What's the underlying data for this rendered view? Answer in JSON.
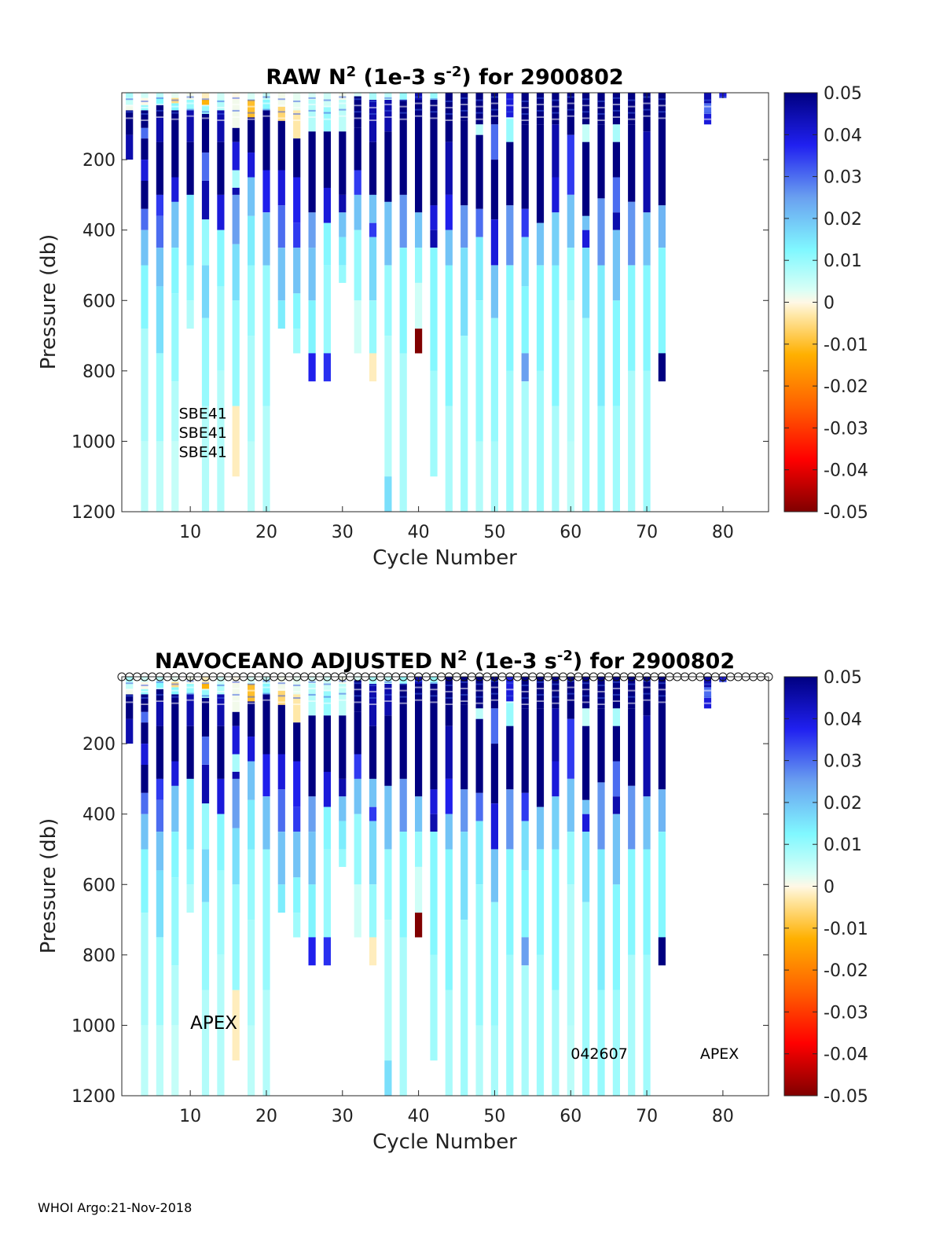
{
  "footer": "WHOI Argo:21-Nov-2018",
  "chart_data": [
    {
      "type": "heatmap",
      "title_prefix": "RAW N",
      "title_sup": "2",
      "title_mid": " (1e-3 s",
      "title_sup2": "-2",
      "title_suffix": ") for 2900802",
      "xlabel": "Cycle Number",
      "ylabel": "Pressure (db)",
      "xlim": [
        1,
        86
      ],
      "ylim": [
        10,
        1200
      ],
      "y_reversed": true,
      "xticks": [
        10,
        20,
        30,
        40,
        50,
        60,
        70,
        80
      ],
      "yticks": [
        200,
        400,
        600,
        800,
        1000,
        1200
      ],
      "colorbar": {
        "min": -0.05,
        "max": 0.05,
        "ticks": [
          "0.05",
          "0.04",
          "0.03",
          "0.02",
          "0.01",
          "0",
          "-0.01",
          "-0.02",
          "-0.03",
          "-0.04",
          "-0.05"
        ]
      },
      "flag_row": false,
      "annotations": [
        {
          "text": "SBE41",
          "cycle": 8.5,
          "pressure": 935
        },
        {
          "text": "SBE41",
          "cycle": 8.5,
          "pressure": 990
        },
        {
          "text": "SBE41",
          "cycle": 8.5,
          "pressure": 1045
        }
      ]
    },
    {
      "type": "heatmap",
      "title_prefix": "NAVOCEANO  ADJUSTED N",
      "title_sup": "2",
      "title_mid": " (1e-3 s",
      "title_sup2": "-2",
      "title_suffix": ") for 2900802",
      "xlabel": "Cycle Number",
      "ylabel": "Pressure (db)",
      "xlim": [
        1,
        86
      ],
      "ylim": [
        10,
        1200
      ],
      "y_reversed": true,
      "xticks": [
        10,
        20,
        30,
        40,
        50,
        60,
        70,
        80
      ],
      "yticks": [
        200,
        400,
        600,
        800,
        1000,
        1200
      ],
      "colorbar": {
        "min": -0.05,
        "max": 0.05,
        "ticks": [
          "0.05",
          "0.04",
          "0.03",
          "0.02",
          "0.01",
          "0",
          "-0.01",
          "-0.02",
          "-0.03",
          "-0.04",
          "-0.05"
        ]
      },
      "flag_row": true,
      "annotations": [
        {
          "text": "APEX",
          "cycle": 10,
          "pressure": 1010,
          "large": true
        },
        {
          "text": "042607",
          "cycle": 60,
          "pressure": 1095
        },
        {
          "text": "APEX",
          "cycle": 77,
          "pressure": 1095
        }
      ]
    }
  ],
  "profiles": [
    {
      "cycle": 2,
      "max_p": 200,
      "segs": [
        [
          10,
          0.008
        ],
        [
          25,
          0.005
        ],
        [
          45,
          0.001
        ],
        [
          60,
          0.05
        ],
        [
          130,
          0.045
        ]
      ]
    },
    {
      "cycle": 4,
      "max_p": 1200,
      "segs": [
        [
          10,
          0.004
        ],
        [
          25,
          0.0
        ],
        [
          45,
          0.01
        ],
        [
          60,
          0.05
        ],
        [
          110,
          0.03
        ],
        [
          140,
          0.05
        ],
        [
          200,
          0.04
        ],
        [
          260,
          0.05
        ],
        [
          340,
          0.03
        ],
        [
          400,
          0.02
        ],
        [
          500,
          0.012
        ],
        [
          680,
          0.008
        ],
        [
          1000,
          0.006
        ]
      ]
    },
    {
      "cycle": 6,
      "max_p": 1200,
      "segs": [
        [
          10,
          0.006
        ],
        [
          25,
          0.012
        ],
        [
          45,
          0.05
        ],
        [
          80,
          0.045
        ],
        [
          150,
          0.05
        ],
        [
          300,
          0.035
        ],
        [
          360,
          0.03
        ],
        [
          450,
          0.02
        ],
        [
          560,
          0.016
        ],
        [
          750,
          0.009
        ],
        [
          1000,
          0.006
        ]
      ]
    },
    {
      "cycle": 8,
      "max_p": 1200,
      "segs": [
        [
          10,
          0.002
        ],
        [
          25,
          -0.005
        ],
        [
          40,
          0.012
        ],
        [
          60,
          0.05
        ],
        [
          250,
          0.04
        ],
        [
          320,
          0.02
        ],
        [
          450,
          0.012
        ],
        [
          580,
          0.01
        ],
        [
          830,
          0.007
        ],
        [
          1000,
          0.005
        ]
      ]
    },
    {
      "cycle": 10,
      "max_p": 680,
      "segs": [
        [
          10,
          0.001
        ],
        [
          30,
          0.01
        ],
        [
          60,
          0.045
        ],
        [
          150,
          0.05
        ],
        [
          300,
          0.014
        ],
        [
          500,
          0.01
        ],
        [
          600,
          0.007
        ]
      ]
    },
    {
      "cycle": 12,
      "max_p": 1200,
      "segs": [
        [
          10,
          -0.002
        ],
        [
          30,
          -0.012
        ],
        [
          45,
          0.01
        ],
        [
          70,
          0.05
        ],
        [
          180,
          0.03
        ],
        [
          260,
          0.045
        ],
        [
          370,
          0.01
        ],
        [
          500,
          0.017
        ],
        [
          650,
          0.01
        ],
        [
          900,
          0.007
        ]
      ]
    },
    {
      "cycle": 14,
      "max_p": 1200,
      "segs": [
        [
          10,
          0.004
        ],
        [
          30,
          0.007
        ],
        [
          60,
          0.045
        ],
        [
          150,
          0.05
        ],
        [
          300,
          0.04
        ],
        [
          400,
          0.012
        ],
        [
          560,
          0.009
        ],
        [
          800,
          0.007
        ]
      ]
    },
    {
      "cycle": 16,
      "max_p": 1100,
      "segs": [
        [
          10,
          0.0
        ],
        [
          30,
          0.001
        ],
        [
          110,
          0.05
        ],
        [
          150,
          0.04
        ],
        [
          230,
          0.008
        ],
        [
          280,
          0.045
        ],
        [
          300,
          0.025
        ],
        [
          440,
          0.016
        ],
        [
          600,
          0.01
        ],
        [
          900,
          -0.002
        ]
      ]
    },
    {
      "cycle": 18,
      "max_p": 1200,
      "segs": [
        [
          10,
          0.003
        ],
        [
          30,
          -0.01
        ],
        [
          80,
          0.05
        ],
        [
          180,
          0.04
        ],
        [
          250,
          0.02
        ],
        [
          360,
          0.014
        ],
        [
          500,
          0.01
        ],
        [
          700,
          0.008
        ],
        [
          1000,
          0.006
        ]
      ]
    },
    {
      "cycle": 20,
      "max_p": 1200,
      "segs": [
        [
          10,
          0.005
        ],
        [
          30,
          0.012
        ],
        [
          60,
          0.05
        ],
        [
          230,
          0.038
        ],
        [
          350,
          0.02
        ],
        [
          500,
          0.01
        ],
        [
          900,
          0.007
        ]
      ]
    },
    {
      "cycle": 22,
      "max_p": 680,
      "segs": [
        [
          10,
          0.001
        ],
        [
          50,
          -0.006
        ],
        [
          90,
          0.05
        ],
        [
          230,
          0.04
        ],
        [
          330,
          0.03
        ],
        [
          450,
          0.02
        ],
        [
          600,
          0.014
        ]
      ]
    },
    {
      "cycle": 24,
      "max_p": 750,
      "segs": [
        [
          10,
          0.002
        ],
        [
          60,
          -0.003
        ],
        [
          140,
          0.05
        ],
        [
          250,
          0.038
        ],
        [
          380,
          0.035
        ],
        [
          450,
          0.02
        ],
        [
          580,
          0.012
        ],
        [
          680,
          0.009
        ]
      ]
    },
    {
      "cycle": 26,
      "max_p": 830,
      "segs": [
        [
          10,
          0.003
        ],
        [
          30,
          0.007
        ],
        [
          120,
          0.05
        ],
        [
          350,
          0.025
        ],
        [
          450,
          0.02
        ],
        [
          600,
          0.013
        ],
        [
          750,
          0.038
        ]
      ]
    },
    {
      "cycle": 28,
      "max_p": 830,
      "segs": [
        [
          10,
          0.004
        ],
        [
          50,
          0.01
        ],
        [
          120,
          0.05
        ],
        [
          280,
          0.04
        ],
        [
          380,
          0.012
        ],
        [
          500,
          0.01
        ],
        [
          750,
          0.036
        ]
      ]
    },
    {
      "cycle": 30,
      "max_p": 550,
      "segs": [
        [
          10,
          0.001
        ],
        [
          30,
          0.006
        ],
        [
          120,
          0.05
        ],
        [
          300,
          0.045
        ],
        [
          350,
          0.02
        ],
        [
          420,
          0.014
        ],
        [
          500,
          0.01
        ]
      ]
    },
    {
      "cycle": 32,
      "max_p": 750,
      "segs": [
        [
          10,
          0.003
        ],
        [
          20,
          0.05
        ],
        [
          110,
          0.05
        ],
        [
          230,
          0.035
        ],
        [
          300,
          0.02
        ],
        [
          400,
          0.01
        ],
        [
          600,
          0.004
        ]
      ]
    },
    {
      "cycle": 34,
      "max_p": 830,
      "segs": [
        [
          10,
          0.008
        ],
        [
          30,
          0.045
        ],
        [
          150,
          0.05
        ],
        [
          300,
          0.02
        ],
        [
          380,
          0.035
        ],
        [
          420,
          0.017
        ],
        [
          600,
          0.01
        ],
        [
          750,
          -0.002
        ]
      ]
    },
    {
      "cycle": 36,
      "max_p": 1200,
      "segs": [
        [
          10,
          0.006
        ],
        [
          30,
          0.045
        ],
        [
          120,
          0.05
        ],
        [
          320,
          0.02
        ],
        [
          500,
          0.01
        ],
        [
          700,
          0.007
        ],
        [
          1100,
          0.016
        ]
      ]
    },
    {
      "cycle": 38,
      "max_p": 1200,
      "segs": [
        [
          10,
          0.01
        ],
        [
          30,
          0.05
        ],
        [
          300,
          0.026
        ],
        [
          450,
          0.012
        ],
        [
          750,
          0.008
        ]
      ]
    },
    {
      "cycle": 40,
      "max_p": 750,
      "segs": [
        [
          10,
          0.045
        ],
        [
          30,
          0.05
        ],
        [
          350,
          0.02
        ],
        [
          450,
          0.01
        ],
        [
          550,
          0.004
        ],
        [
          680,
          -0.05
        ]
      ]
    },
    {
      "cycle": 42,
      "max_p": 1100,
      "segs": [
        [
          10,
          0.01
        ],
        [
          30,
          0.05
        ],
        [
          330,
          0.04
        ],
        [
          400,
          0.045
        ],
        [
          450,
          0.012
        ],
        [
          800,
          0.009
        ]
      ]
    },
    {
      "cycle": 44,
      "max_p": 1200,
      "segs": [
        [
          10,
          0.05
        ],
        [
          150,
          0.045
        ],
        [
          300,
          0.038
        ],
        [
          400,
          0.02
        ],
        [
          500,
          0.012
        ],
        [
          900,
          0.008
        ]
      ]
    },
    {
      "cycle": 46,
      "max_p": 1200,
      "segs": [
        [
          10,
          0.05
        ],
        [
          90,
          0.05
        ],
        [
          330,
          0.026
        ],
        [
          450,
          0.016
        ],
        [
          700,
          0.009
        ]
      ]
    },
    {
      "cycle": 48,
      "max_p": 1200,
      "segs": [
        [
          10,
          0.05
        ],
        [
          100,
          0.006
        ],
        [
          130,
          0.05
        ],
        [
          340,
          0.03
        ],
        [
          420,
          0.014
        ],
        [
          600,
          0.01
        ],
        [
          1000,
          0.007
        ]
      ]
    },
    {
      "cycle": 50,
      "max_p": 1200,
      "segs": [
        [
          10,
          0.05
        ],
        [
          100,
          0.03
        ],
        [
          200,
          0.05
        ],
        [
          370,
          0.04
        ],
        [
          500,
          0.02
        ],
        [
          650,
          0.01
        ],
        [
          1000,
          0.008
        ]
      ]
    },
    {
      "cycle": 52,
      "max_p": 1200,
      "segs": [
        [
          10,
          0.04
        ],
        [
          80,
          0.01
        ],
        [
          150,
          0.05
        ],
        [
          330,
          0.026
        ],
        [
          500,
          0.012
        ],
        [
          800,
          0.009
        ]
      ]
    },
    {
      "cycle": 54,
      "max_p": 1200,
      "segs": [
        [
          10,
          0.05
        ],
        [
          100,
          0.05
        ],
        [
          340,
          0.035
        ],
        [
          420,
          0.016
        ],
        [
          560,
          0.012
        ],
        [
          750,
          0.025
        ],
        [
          830,
          0.008
        ]
      ]
    },
    {
      "cycle": 56,
      "max_p": 1200,
      "segs": [
        [
          10,
          0.05
        ],
        [
          100,
          0.05
        ],
        [
          380,
          0.02
        ],
        [
          500,
          0.012
        ],
        [
          800,
          0.009
        ]
      ]
    },
    {
      "cycle": 58,
      "max_p": 1200,
      "segs": [
        [
          10,
          0.05
        ],
        [
          100,
          0.045
        ],
        [
          250,
          0.04
        ],
        [
          350,
          0.018
        ],
        [
          500,
          0.012
        ],
        [
          900,
          0.008
        ]
      ]
    },
    {
      "cycle": 60,
      "max_p": 1200,
      "segs": [
        [
          10,
          0.05
        ],
        [
          130,
          0.035
        ],
        [
          300,
          0.02
        ],
        [
          450,
          0.01
        ],
        [
          600,
          0.007
        ],
        [
          1000,
          0.006
        ]
      ]
    },
    {
      "cycle": 62,
      "max_p": 1200,
      "segs": [
        [
          10,
          0.05
        ],
        [
          100,
          0.005
        ],
        [
          150,
          0.05
        ],
        [
          360,
          0.02
        ],
        [
          400,
          0.04
        ],
        [
          450,
          0.016
        ],
        [
          650,
          0.009
        ]
      ]
    },
    {
      "cycle": 64,
      "max_p": 1200,
      "segs": [
        [
          10,
          0.05
        ],
        [
          100,
          0.05
        ],
        [
          310,
          0.026
        ],
        [
          500,
          0.014
        ],
        [
          900,
          0.01
        ]
      ]
    },
    {
      "cycle": 66,
      "max_p": 1200,
      "segs": [
        [
          10,
          0.05
        ],
        [
          100,
          0.008
        ],
        [
          150,
          0.05
        ],
        [
          250,
          0.03
        ],
        [
          350,
          0.045
        ],
        [
          400,
          0.02
        ],
        [
          600,
          0.012
        ],
        [
          900,
          0.009
        ]
      ]
    },
    {
      "cycle": 68,
      "max_p": 1200,
      "segs": [
        [
          10,
          0.05
        ],
        [
          100,
          0.05
        ],
        [
          320,
          0.026
        ],
        [
          500,
          0.012
        ],
        [
          800,
          0.008
        ]
      ]
    },
    {
      "cycle": 70,
      "max_p": 1200,
      "segs": [
        [
          10,
          0.05
        ],
        [
          120,
          0.045
        ],
        [
          350,
          0.02
        ],
        [
          500,
          0.012
        ],
        [
          800,
          0.009
        ]
      ]
    },
    {
      "cycle": 72,
      "max_p": 830,
      "segs": [
        [
          10,
          0.05
        ],
        [
          50,
          0.05
        ],
        [
          330,
          0.022
        ],
        [
          450,
          0.012
        ],
        [
          750,
          0.05
        ]
      ]
    },
    {
      "cycle": 78,
      "max_p": 100,
      "segs": [
        [
          10,
          0.045
        ],
        [
          40,
          0.03
        ],
        [
          70,
          0.04
        ]
      ]
    },
    {
      "cycle": 80,
      "max_p": 25,
      "segs": [
        [
          10,
          0.04
        ]
      ]
    }
  ]
}
